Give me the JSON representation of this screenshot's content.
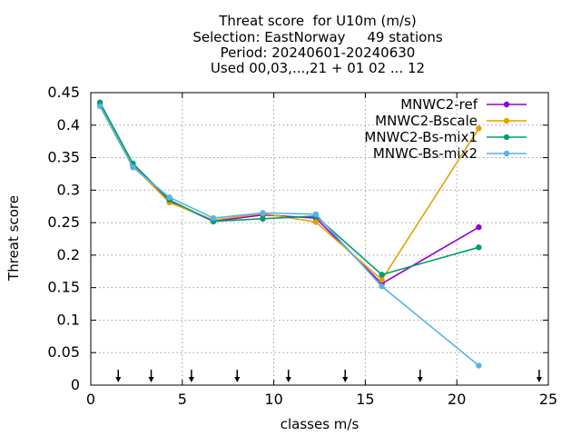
{
  "chart_data": {
    "type": "line",
    "title": [
      "Threat score  for U10m (m/s)",
      "Selection: EastNorway     49 stations",
      "Period: 20240601-20240630",
      "Used 00,03,...,21 + 01 02 ... 12"
    ],
    "xlabel": "classes m/s",
    "ylabel": "Threat score",
    "xlim": [
      0,
      25
    ],
    "ylim": [
      0,
      0.45
    ],
    "xticks": [
      0,
      5,
      10,
      15,
      20,
      25
    ],
    "yticks": [
      0,
      0.05,
      0.1,
      0.15,
      0.2,
      0.25,
      0.3,
      0.35,
      0.4,
      0.45
    ],
    "grid": true,
    "legend_position": "top-right",
    "class_markers": [
      1.5,
      3.3,
      5.5,
      8.0,
      10.8,
      13.9,
      18.0,
      24.5
    ],
    "series": [
      {
        "name": "MNWC2-ref",
        "color": "#9400d3",
        "x": [
          0.5,
          2.3,
          4.3,
          6.7,
          9.4,
          12.3,
          15.9,
          21.2
        ],
        "y": [
          0.433,
          0.34,
          0.283,
          0.252,
          0.262,
          0.257,
          0.156,
          0.243
        ]
      },
      {
        "name": "MNWC2-Bscale",
        "color": "#e69f00",
        "x": [
          0.5,
          2.3,
          4.3,
          6.7,
          9.4,
          12.3,
          15.9,
          21.2
        ],
        "y": [
          0.431,
          0.338,
          0.281,
          0.254,
          0.264,
          0.251,
          0.162,
          0.395
        ]
      },
      {
        "name": "MNWC2-Bs-mix1",
        "color": "#009e73",
        "x": [
          0.5,
          2.3,
          4.3,
          6.7,
          9.4,
          12.3,
          15.9,
          21.2
        ],
        "y": [
          0.435,
          0.341,
          0.285,
          0.252,
          0.256,
          0.26,
          0.17,
          0.212
        ]
      },
      {
        "name": "MNWC-Bs-mix2",
        "color": "#56b4e9",
        "x": [
          0.5,
          2.3,
          4.3,
          6.7,
          9.4,
          12.3,
          15.9,
          21.2
        ],
        "y": [
          0.429,
          0.335,
          0.289,
          0.257,
          0.265,
          0.263,
          0.152,
          0.03
        ]
      }
    ]
  }
}
